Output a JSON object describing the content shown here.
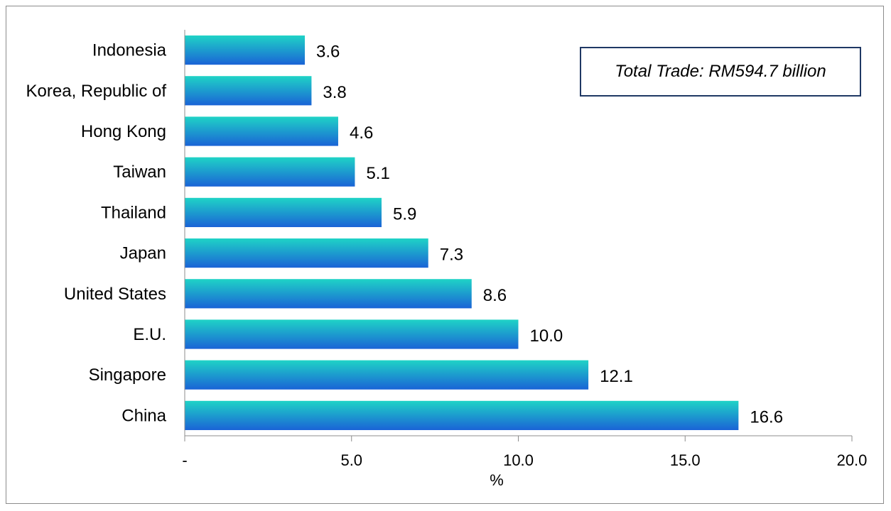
{
  "chart_data": {
    "type": "bar",
    "orientation": "horizontal",
    "categories": [
      "Indonesia",
      "Korea, Republic of",
      "Hong Kong",
      "Taiwan",
      "Thailand",
      "Japan",
      "United States",
      "E.U.",
      "Singapore",
      "China"
    ],
    "values": [
      3.6,
      3.8,
      4.6,
      5.1,
      5.9,
      7.3,
      8.6,
      10.0,
      12.1,
      16.6
    ],
    "data_labels": [
      "3.6",
      "3.8",
      "4.6",
      "5.1",
      "5.9",
      "7.3",
      "8.6",
      "10.0",
      "12.1",
      "16.6"
    ],
    "xlabel": "%",
    "xlim": [
      0,
      20
    ],
    "xticks": [
      0,
      5,
      10,
      15,
      20
    ],
    "xtick_labels": [
      "-",
      "5.0",
      "10.0",
      "15.0",
      "20.0"
    ],
    "grid": false,
    "annotation": "Total Trade: RM594.7 billion",
    "colors": {
      "bar_top": "#1fd3c6",
      "bar_bottom": "#1a63d6",
      "annotation_border": "#1f3864"
    }
  }
}
